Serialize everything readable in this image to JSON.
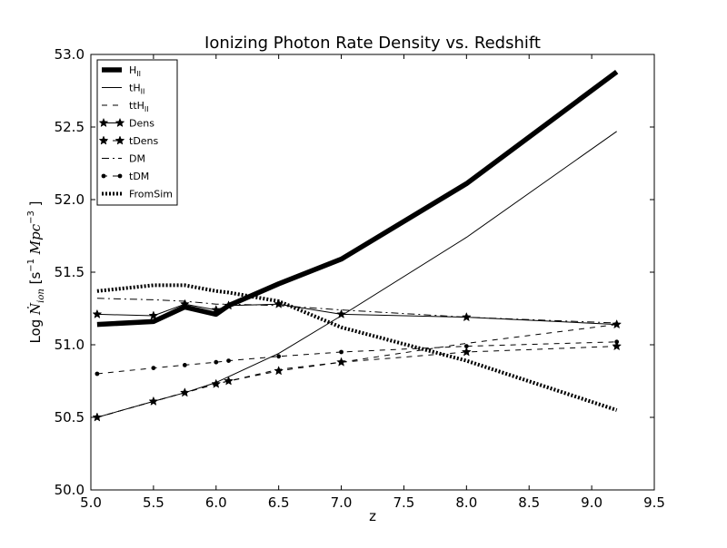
{
  "chart_data": {
    "type": "line",
    "title": "Ionizing Photon Rate Density vs. Redshift",
    "xlabel": "z",
    "ylabel_prefix": "Log ",
    "ylabel_symbol": "Ṅ",
    "ylabel_sub": "ion",
    "ylabel_units_open": " [s",
    "ylabel_sup1": "−1",
    "ylabel_units_mid": " Mpc",
    "ylabel_sup2": "−3",
    "ylabel_units_close": " ]",
    "xlim": [
      5.0,
      9.5
    ],
    "ylim": [
      50.0,
      53.0
    ],
    "xticks": [
      5.0,
      5.5,
      6.0,
      6.5,
      7.0,
      7.5,
      8.0,
      8.5,
      9.0,
      9.5
    ],
    "yticks": [
      50.0,
      50.5,
      51.0,
      51.5,
      52.0,
      52.5,
      53.0
    ],
    "xtick_labels": [
      "5.0",
      "5.5",
      "6.0",
      "6.5",
      "7.0",
      "7.5",
      "8.0",
      "8.5",
      "9.0",
      "9.5"
    ],
    "ytick_labels": [
      "50.0",
      "50.5",
      "51.0",
      "51.5",
      "52.0",
      "52.5",
      "53.0"
    ],
    "grid": false,
    "legend_position": "top-left",
    "series": [
      {
        "name": "H",
        "name_sub": "II",
        "style": "thick-solid",
        "color": "#000000",
        "x": [
          5.05,
          5.5,
          5.75,
          6.0,
          6.1,
          6.5,
          7.0,
          8.0,
          9.2
        ],
        "y": [
          51.14,
          51.16,
          51.26,
          51.21,
          51.27,
          51.42,
          51.59,
          52.11,
          52.88
        ]
      },
      {
        "name": "tH",
        "name_sub": "II",
        "style": "thin-solid",
        "color": "#000000",
        "x": [
          5.05,
          5.5,
          5.75,
          6.0,
          6.1,
          6.5,
          7.0,
          8.0,
          9.2
        ],
        "y": [
          50.5,
          50.61,
          50.67,
          50.74,
          50.78,
          50.94,
          51.2,
          51.74,
          52.47
        ]
      },
      {
        "name": "ttH",
        "name_sub": "II",
        "style": "dashed",
        "color": "#000000",
        "x": [
          5.05,
          5.5,
          5.75,
          6.0,
          6.1,
          6.5,
          7.0,
          8.0,
          9.2
        ],
        "y": [
          50.5,
          50.61,
          50.67,
          50.73,
          50.75,
          50.83,
          50.88,
          51.01,
          51.14
        ]
      },
      {
        "name": "Dens",
        "name_sub": "",
        "style": "solid-star",
        "color": "#000000",
        "x": [
          5.05,
          5.5,
          5.75,
          6.0,
          6.1,
          6.5,
          7.0,
          8.0,
          9.2
        ],
        "y": [
          51.21,
          51.2,
          51.28,
          51.24,
          51.27,
          51.28,
          51.21,
          51.19,
          51.14
        ]
      },
      {
        "name": "tDens",
        "name_sub": "",
        "style": "dashed-star",
        "color": "#000000",
        "x": [
          5.05,
          5.5,
          5.75,
          6.0,
          6.1,
          6.5,
          7.0,
          8.0,
          9.2
        ],
        "y": [
          50.5,
          50.61,
          50.67,
          50.73,
          50.75,
          50.82,
          50.88,
          50.95,
          50.99
        ]
      },
      {
        "name": "DM",
        "name_sub": "",
        "style": "dashdot",
        "color": "#000000",
        "x": [
          5.05,
          5.5,
          5.75,
          6.0,
          6.1,
          6.5,
          7.0,
          8.0,
          9.2
        ],
        "y": [
          51.32,
          51.31,
          51.3,
          51.28,
          51.28,
          51.27,
          51.24,
          51.19,
          51.15
        ]
      },
      {
        "name": "tDM",
        "name_sub": "",
        "style": "dashed-dot",
        "color": "#000000",
        "x": [
          5.05,
          5.5,
          5.75,
          6.0,
          6.1,
          6.5,
          7.0,
          8.0,
          9.2
        ],
        "y": [
          50.8,
          50.84,
          50.86,
          50.88,
          50.89,
          50.92,
          50.95,
          50.99,
          51.02
        ]
      },
      {
        "name": "FromSim",
        "name_sub": "",
        "style": "thick-dotted",
        "color": "#000000",
        "x": [
          5.05,
          5.5,
          5.75,
          6.0,
          6.1,
          6.5,
          7.0,
          8.0,
          9.2
        ],
        "y": [
          51.37,
          51.41,
          51.41,
          51.37,
          51.36,
          51.3,
          51.12,
          50.89,
          50.55
        ]
      }
    ]
  }
}
